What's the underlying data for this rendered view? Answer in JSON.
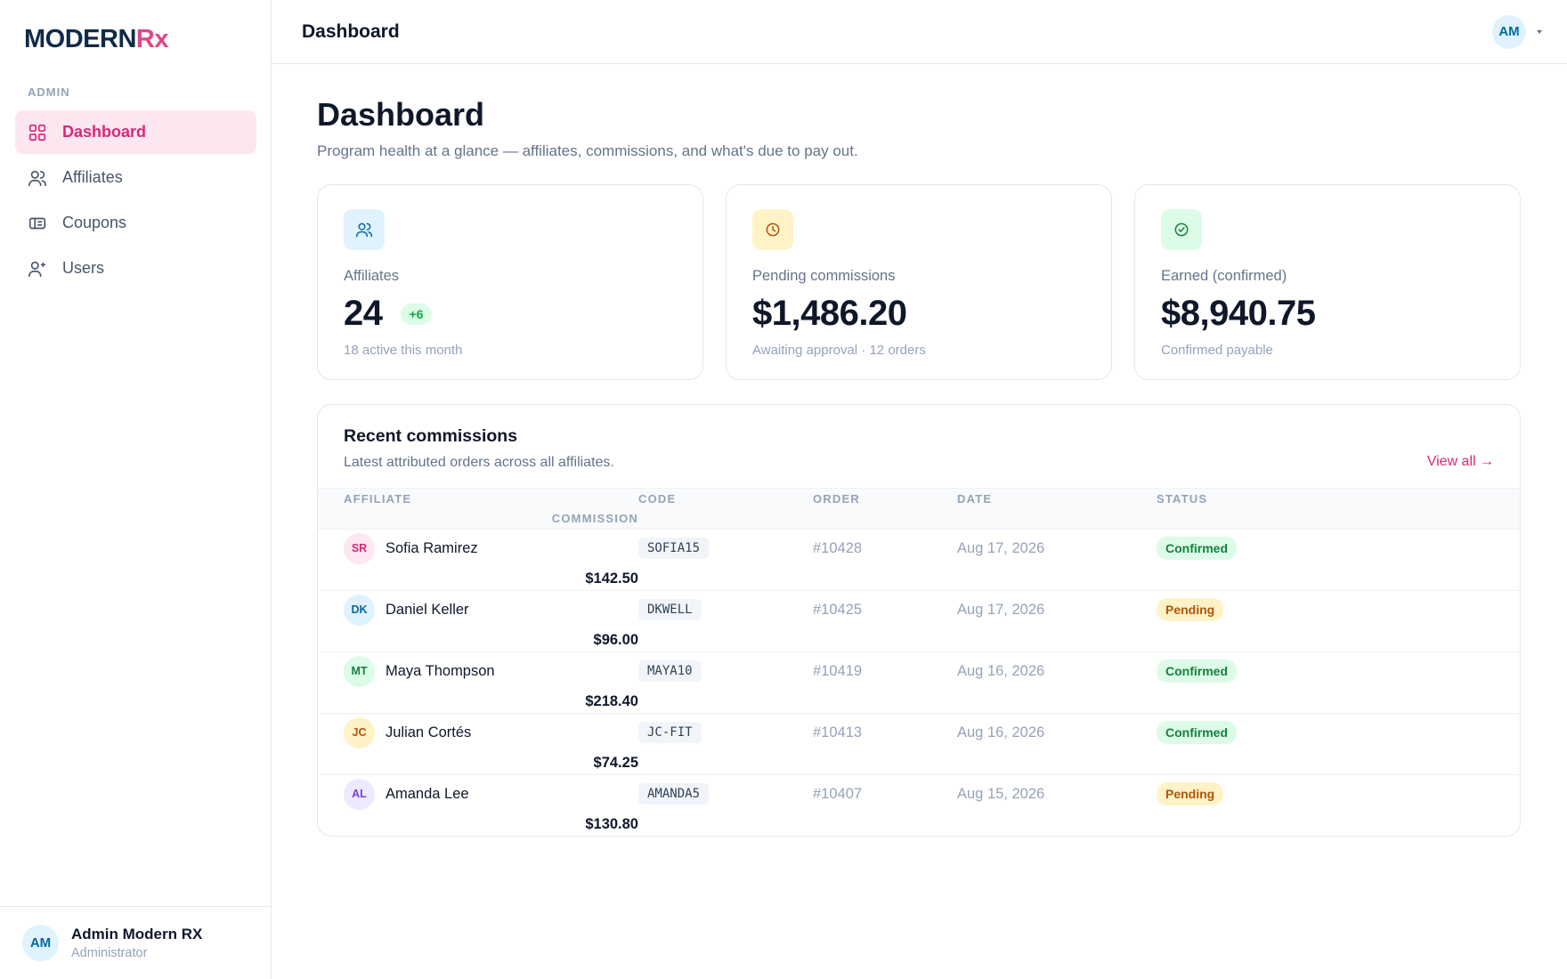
{
  "brand": {
    "name": "MODERN",
    "accent": "Rx"
  },
  "sidebar": {
    "section": "ADMIN",
    "nav": [
      "Dashboard",
      "Affiliates",
      "Coupons",
      "Users"
    ],
    "user": {
      "initials": "AM",
      "name": "Admin Modern RX",
      "role": "Administrator"
    }
  },
  "topbar": {
    "title": "Dashboard",
    "initials": "AM"
  },
  "page": {
    "title": "Dashboard",
    "subtitle": "Program health at a glance — affiliates, commissions, and what's due to pay out."
  },
  "stats": [
    {
      "label": "Affiliates",
      "value": "24",
      "badge": "+6",
      "note": "18 active this month"
    },
    {
      "label": "Pending commissions",
      "value": "$1,486.20",
      "note": "Awaiting approval · 12 orders"
    },
    {
      "label": "Earned (confirmed)",
      "value": "$8,940.75",
      "note": "Confirmed payable"
    }
  ],
  "table": {
    "title": "Recent commissions",
    "subtitle": "Latest attributed orders across all affiliates.",
    "link": "View all →",
    "columns": [
      "AFFILIATE",
      "CODE",
      "ORDER",
      "DATE",
      "STATUS",
      "COMMISSION"
    ],
    "rows": [
      [
        "SR",
        "Sofia Ramirez",
        "SOFIA15",
        "#10428",
        "Aug 17, 2026",
        "Confirmed",
        "$142.50"
      ],
      [
        "DK",
        "Daniel Keller",
        "DKWELL",
        "#10425",
        "Aug 17, 2026",
        "Pending",
        "$96.00"
      ],
      [
        "MT",
        "Maya Thompson",
        "MAYA10",
        "#10419",
        "Aug 16, 2026",
        "Confirmed",
        "$218.40"
      ],
      [
        "JC",
        "Julian Cortés",
        "JC-FIT",
        "#10413",
        "Aug 16, 2026",
        "Confirmed",
        "$74.25"
      ],
      [
        "AL",
        "Amanda Lee",
        "AMANDA5",
        "#10407",
        "Aug 15, 2026",
        "Pending",
        "$130.80"
      ]
    ]
  }
}
